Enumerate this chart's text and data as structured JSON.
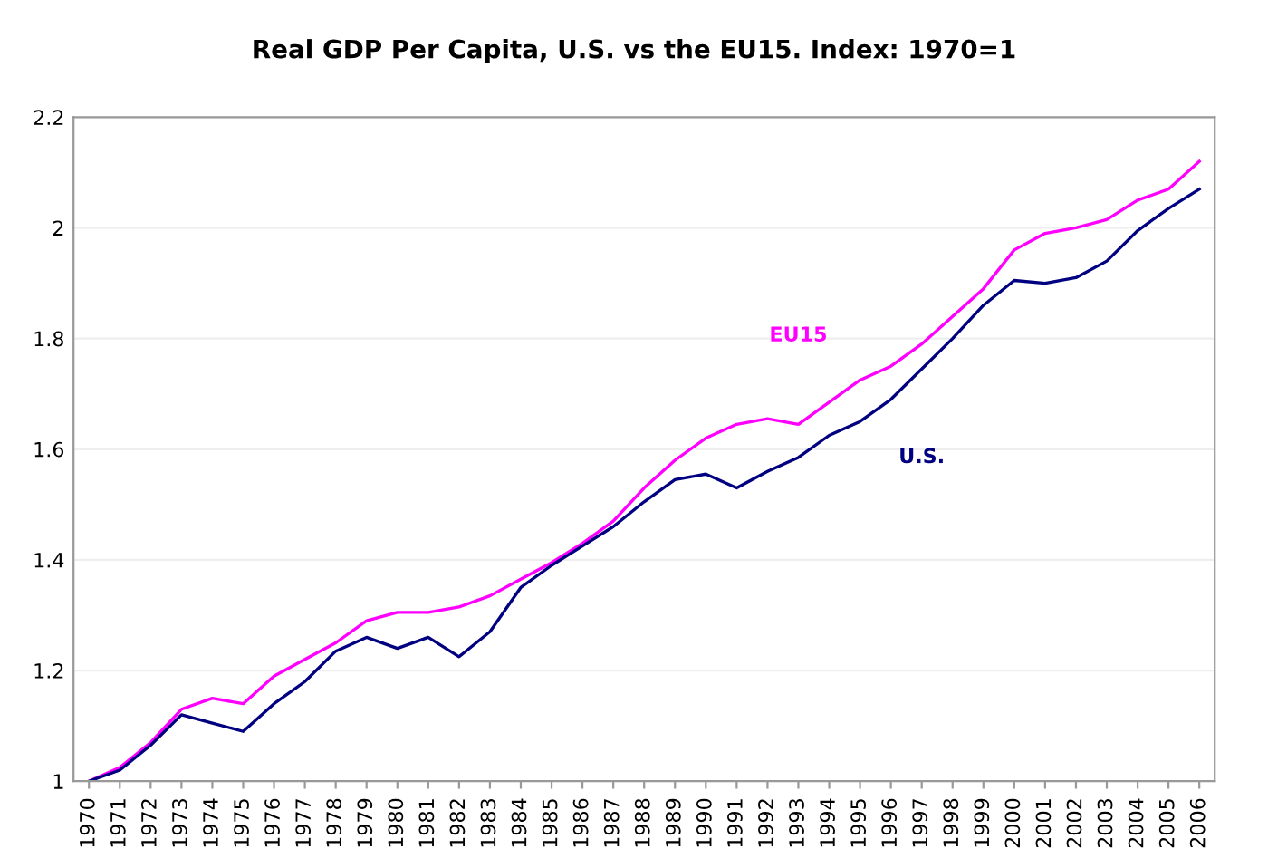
{
  "chart_data": {
    "type": "line",
    "title": "Real GDP Per Capita, U.S. vs the EU15. Index: 1970=1",
    "categories": [
      "1970",
      "1971",
      "1972",
      "1973",
      "1974",
      "1975",
      "1976",
      "1977",
      "1978",
      "1979",
      "1980",
      "1981",
      "1982",
      "1983",
      "1984",
      "1985",
      "1986",
      "1987",
      "1988",
      "1989",
      "1990",
      "1991",
      "1992",
      "1993",
      "1994",
      "1995",
      "1996",
      "1997",
      "1998",
      "1999",
      "2000",
      "2001",
      "2002",
      "2003",
      "2004",
      "2005",
      "2006"
    ],
    "series": [
      {
        "name": "EU15",
        "color": "#ff00ff",
        "values": [
          1.0,
          1.025,
          1.07,
          1.13,
          1.15,
          1.14,
          1.19,
          1.22,
          1.25,
          1.29,
          1.305,
          1.305,
          1.315,
          1.335,
          1.365,
          1.395,
          1.43,
          1.47,
          1.53,
          1.58,
          1.62,
          1.645,
          1.655,
          1.645,
          1.685,
          1.725,
          1.75,
          1.79,
          1.84,
          1.89,
          1.96,
          1.99,
          2.0,
          2.015,
          2.05,
          2.07,
          2.12
        ]
      },
      {
        "name": "U.S.",
        "color": "#000080",
        "values": [
          1.0,
          1.02,
          1.065,
          1.12,
          1.105,
          1.09,
          1.14,
          1.18,
          1.235,
          1.26,
          1.24,
          1.26,
          1.225,
          1.27,
          1.35,
          1.39,
          1.425,
          1.46,
          1.505,
          1.545,
          1.555,
          1.53,
          1.56,
          1.585,
          1.625,
          1.65,
          1.69,
          1.745,
          1.8,
          1.86,
          1.905,
          1.9,
          1.91,
          1.94,
          1.995,
          2.035,
          2.07
        ]
      }
    ],
    "ylim": [
      1,
      2.2
    ],
    "yticks": [
      1,
      1.2,
      1.4,
      1.6,
      1.8,
      2,
      2.2
    ],
    "grid": "y",
    "legend": false
  }
}
